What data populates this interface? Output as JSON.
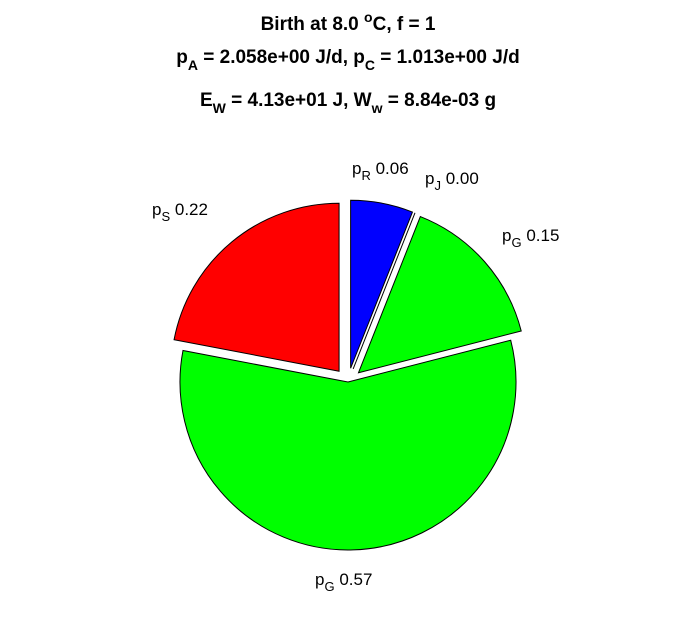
{
  "chart_data": {
    "type": "pie",
    "title_lines": [
      {
        "parts": [
          {
            "t": "Birth at 8.0 "
          },
          {
            "t": "o",
            "s": "sup"
          },
          {
            "t": "C, f = 1"
          }
        ]
      },
      {
        "parts": [
          {
            "t": "p"
          },
          {
            "t": "A",
            "s": "sub"
          },
          {
            "t": " = 2.058e+00 J/d, p"
          },
          {
            "t": "C",
            "s": "sub"
          },
          {
            "t": " = 1.013e+00 J/d"
          }
        ]
      },
      {
        "parts": [
          {
            "t": "E"
          },
          {
            "t": "W",
            "s": "sub"
          },
          {
            "t": " = 4.13e+01 J, W"
          },
          {
            "t": "w",
            "s": "sub"
          },
          {
            "t": " = 8.84e-03 g"
          }
        ]
      }
    ],
    "slices": [
      {
        "symbol": "p",
        "subscript": "R",
        "value": 0.06,
        "value_label": "0.06",
        "color": "#0000ff",
        "exploded": true
      },
      {
        "symbol": "p",
        "subscript": "J",
        "value": 0.0,
        "value_label": "0.00",
        "color": "#ff0000",
        "exploded": true
      },
      {
        "symbol": "p",
        "subscript": "G",
        "value": 0.15,
        "value_label": "0.15",
        "color": "#00ff00",
        "exploded": true
      },
      {
        "symbol": "p",
        "subscript": "G",
        "value": 0.57,
        "value_label": "0.57",
        "color": "#00ff00",
        "exploded": false
      },
      {
        "symbol": "p",
        "subscript": "S",
        "value": 0.22,
        "value_label": "0.22",
        "color": "#ff0000",
        "exploded": true
      }
    ]
  }
}
